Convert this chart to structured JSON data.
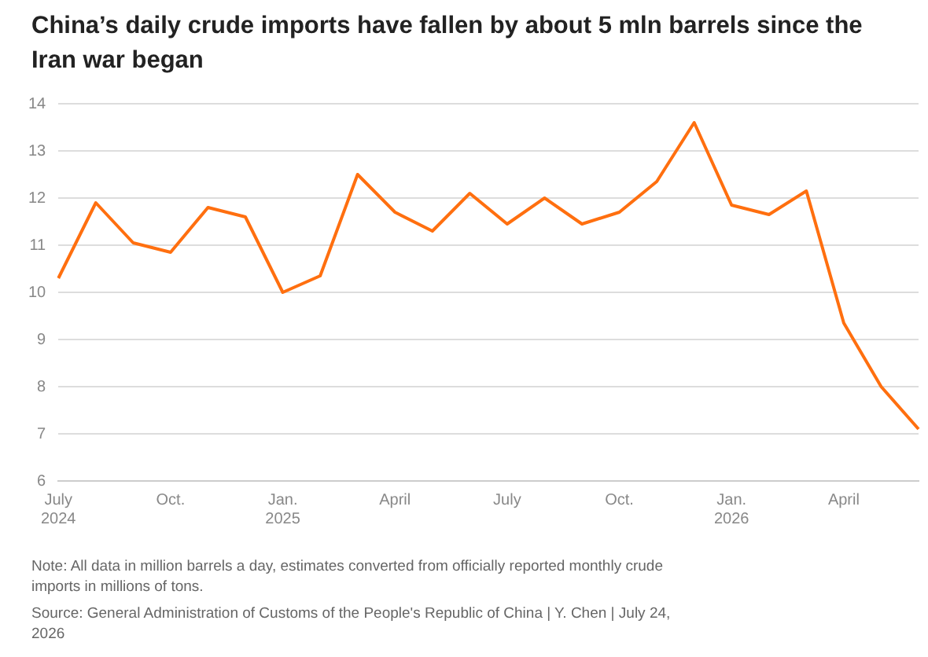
{
  "chart_data": {
    "type": "line",
    "title": "China’s daily crude imports have fallen by about 5 mln barrels since the Iran war began",
    "categories": [
      "July\n2024",
      null,
      null,
      "Oct.",
      null,
      null,
      "Jan.\n2025",
      null,
      null,
      "April",
      null,
      null,
      "July",
      null,
      null,
      "Oct.",
      null,
      null,
      "Jan.\n2026",
      null,
      null,
      "April",
      null,
      null
    ],
    "series": [
      {
        "color": "#ff6f0f",
        "values": [
          10.3,
          11.9,
          11.05,
          10.85,
          11.8,
          11.6,
          10.0,
          10.35,
          12.5,
          11.7,
          11.3,
          12.1,
          11.45,
          12.0,
          11.45,
          11.7,
          12.35,
          13.6,
          11.85,
          11.65,
          12.15,
          9.35,
          8.0,
          7.1
        ]
      }
    ],
    "ylim": [
      6,
      14
    ],
    "yticks": [
      6,
      7,
      8,
      9,
      10,
      11,
      12,
      13,
      14
    ],
    "grid": "y",
    "legend": false,
    "marker": "none",
    "line_style": "solid",
    "annotations": [
      "Note: All data in million barrels a day, estimates converted from officially reported monthly crude imports in millions of tons.",
      "Source: General Administration of Customs of the People's Republic of China | Y. Chen | July 24, 2026"
    ]
  }
}
